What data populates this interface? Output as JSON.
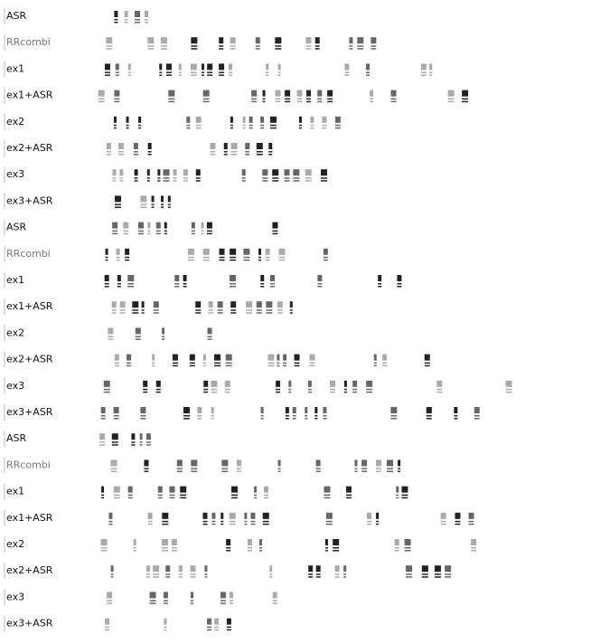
{
  "groups": [
    {
      "rows": [
        "ASR",
        "RRcombi",
        "ex1",
        "ex1+ASR",
        "ex2",
        "ex2+ASR",
        "ex3",
        "ex3+ASR"
      ]
    },
    {
      "rows": [
        "ASR",
        "RRcombi",
        "ex1",
        "ex1+ASR",
        "ex2",
        "ex2+ASR",
        "ex3",
        "ex3+ASR"
      ]
    },
    {
      "rows": [
        "ASR",
        "RRcombi",
        "ex1",
        "ex1+ASR",
        "ex2",
        "ex2+ASR",
        "ex3",
        "ex3+ASR"
      ]
    }
  ]
}
